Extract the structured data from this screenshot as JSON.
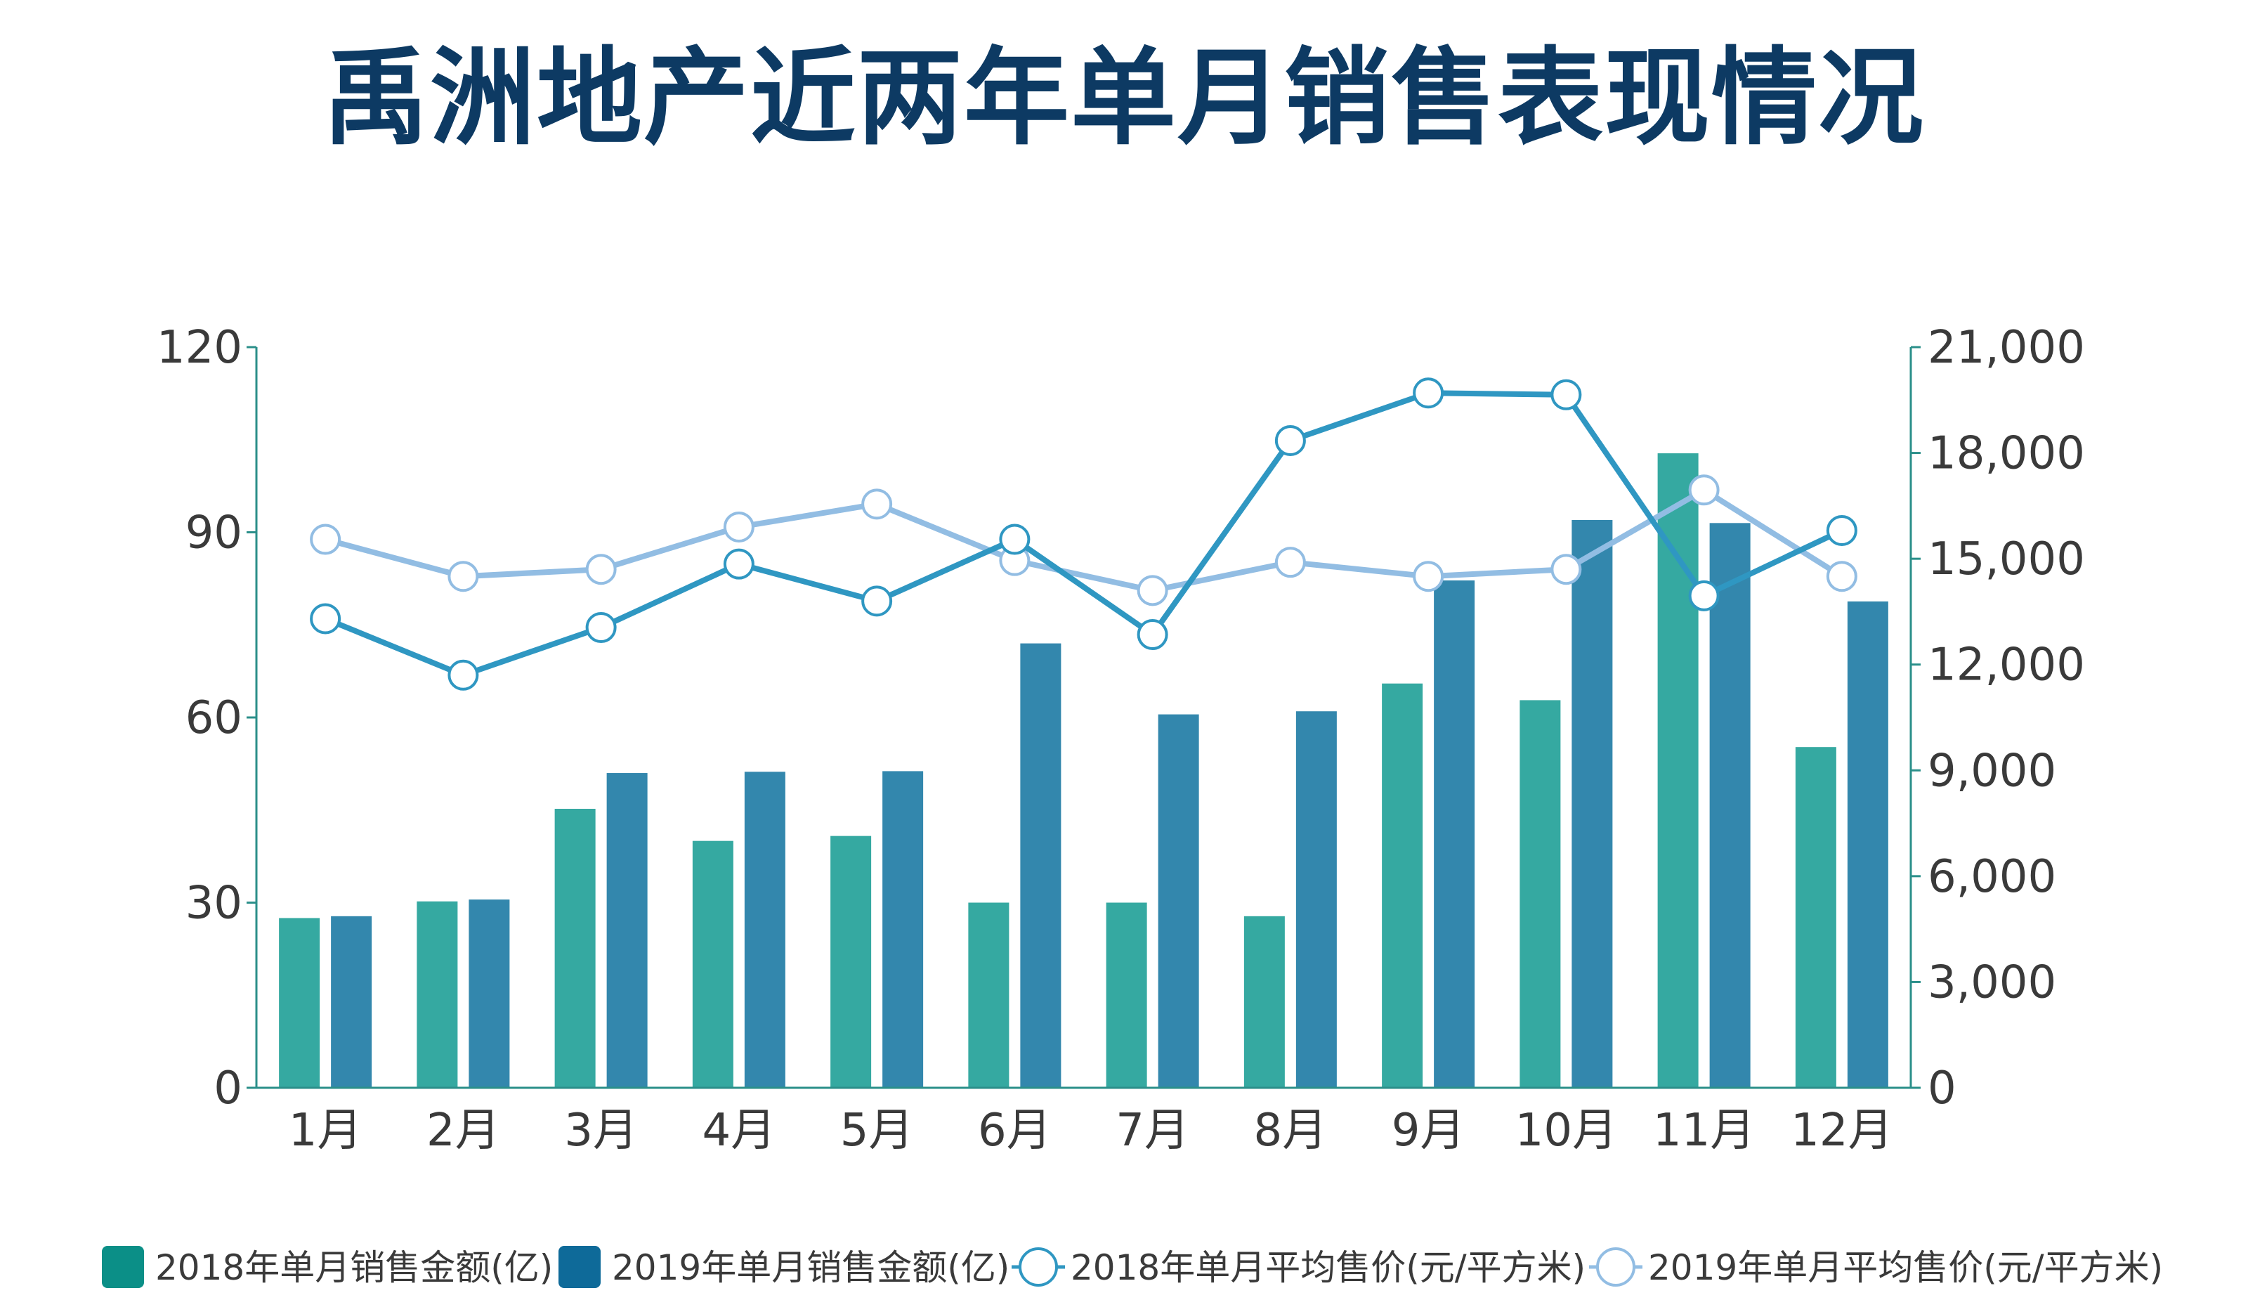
{
  "title": "禹洲地产近两年单月销售表现情况",
  "chart_data": {
    "type": "bar",
    "title": "禹洲地产近两年单月销售表现情况",
    "categories": [
      "1月",
      "2月",
      "3月",
      "4月",
      "5月",
      "6月",
      "7月",
      "8月",
      "9月",
      "10月",
      "11月",
      "12月"
    ],
    "y_left": {
      "ylim": [
        0,
        120
      ],
      "ticks": [
        0,
        30,
        60,
        90,
        120
      ],
      "tick_labels": [
        "0",
        "30",
        "60",
        "90",
        "120"
      ]
    },
    "y_right": {
      "ylim": [
        0,
        21000
      ],
      "ticks": [
        0,
        3000,
        6000,
        9000,
        12000,
        15000,
        18000,
        21000
      ],
      "tick_labels": [
        "0",
        "3,000",
        "6,000",
        "9,000",
        "12,000",
        "15,000",
        "18,000",
        "21,000"
      ]
    },
    "series": [
      {
        "name": "2018年单月销售金额(亿)",
        "kind": "bar",
        "axis": "left",
        "color": "#35a9a1",
        "legend_color": "#0b8f87",
        "values": [
          27.5,
          30.2,
          45.2,
          40.0,
          40.8,
          30.0,
          30.0,
          27.8,
          65.5,
          62.8,
          102.8,
          55.2
        ]
      },
      {
        "name": "2019年单月销售金额(亿)",
        "kind": "bar",
        "axis": "left",
        "color": "#3387ad",
        "legend_color": "#0e6a99",
        "values": [
          27.8,
          30.5,
          51.0,
          51.2,
          51.3,
          72.0,
          60.5,
          61.0,
          82.2,
          92.0,
          91.5,
          78.8
        ]
      },
      {
        "name": "2018年单月平均售价(元/平方米)",
        "kind": "line",
        "axis": "right",
        "color": "#2f97c2",
        "values": [
          13300,
          11700,
          13050,
          14850,
          13800,
          15550,
          12850,
          18350,
          19700,
          19650,
          13950,
          15800
        ]
      },
      {
        "name": "2019年单月平均售价(元/平方米)",
        "kind": "line",
        "axis": "right",
        "color": "#92bde3",
        "values": [
          15550,
          14500,
          14700,
          15900,
          16550,
          14950,
          14100,
          14900,
          14500,
          14700,
          16950,
          14500
        ]
      }
    ],
    "legend_position": "bottom"
  }
}
